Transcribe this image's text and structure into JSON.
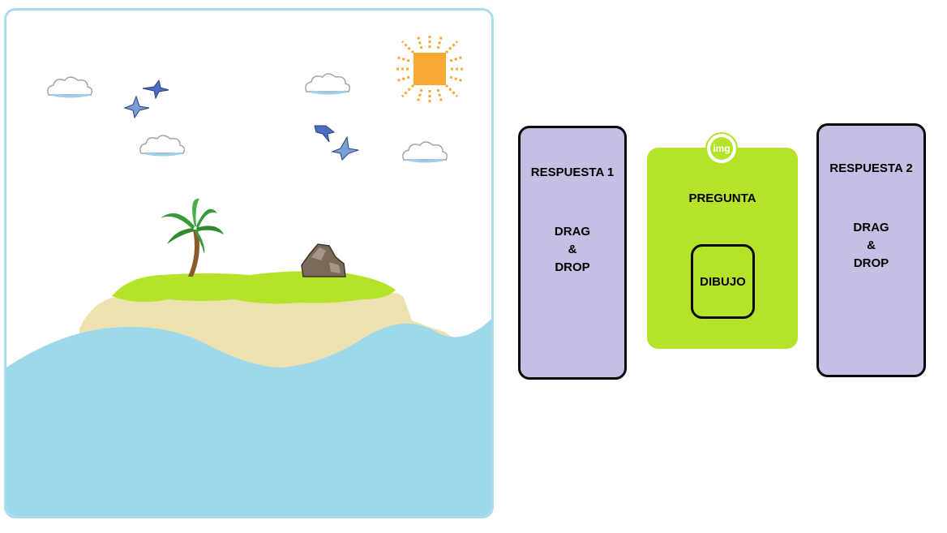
{
  "scene": {
    "label": "Island scene",
    "elements": [
      "sun-icon",
      "cloud-icon",
      "bird-icon",
      "palm-tree-icon",
      "rock-icon",
      "island",
      "sea-waves"
    ]
  },
  "answer_1": {
    "title": "RESPUESTA 1",
    "drag_line1": "DRAG",
    "drag_line2": "&",
    "drag_line3": "DROP"
  },
  "question": {
    "badge": "img",
    "title": "PREGUNTA",
    "drawing_label": "DIBUJO"
  },
  "answer_2": {
    "title": "RESPUESTA 2",
    "drag_line1": "DRAG",
    "drag_line2": "&",
    "drag_line3": "DROP"
  },
  "colors": {
    "answer_bg": "#c7bfe3",
    "question_bg": "#b5e32a",
    "scene_border": "#a8dced",
    "sea": "#9dd9ea",
    "sand": "#ede1b0",
    "grass": "#b5e32a",
    "sun": "#f7a835"
  }
}
